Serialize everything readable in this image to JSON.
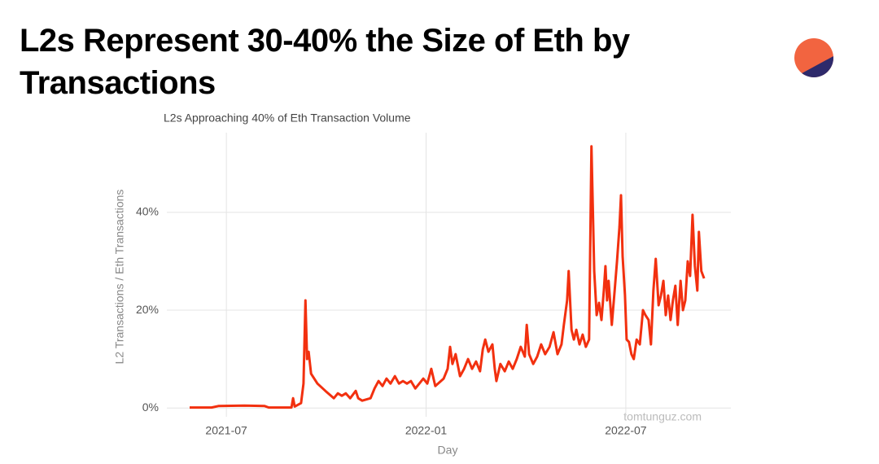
{
  "header": {
    "title": "L2s Represent 30-40% the Size of Eth by Transactions"
  },
  "chart_data": {
    "type": "line",
    "title": "L2s Approaching 40% of Eth Transaction Volume",
    "x_label": "Day",
    "y_label": "L2 Transactions / Eth Transactions",
    "watermark": "tomtunguz.com",
    "color": "#f2300f",
    "grid": true,
    "xlim": [
      2021.351,
      2022.763
    ],
    "xticks": [
      {
        "value": 2021.5,
        "label": "2021-07"
      },
      {
        "value": 2022.0,
        "label": "2022-01"
      },
      {
        "value": 2022.5,
        "label": "2022-07"
      }
    ],
    "ylim": [
      -1.8,
      56.3
    ],
    "yticks": [
      {
        "value": 0,
        "label": "0%"
      },
      {
        "value": 20,
        "label": "20%"
      },
      {
        "value": 40,
        "label": "40%"
      }
    ],
    "x": [
      2021.408,
      2021.463,
      2021.48,
      2021.545,
      2021.596,
      2021.606,
      2021.663,
      2021.667,
      2021.671,
      2021.687,
      2021.693,
      2021.698,
      2021.702,
      2021.706,
      2021.712,
      2021.728,
      2021.748,
      2021.769,
      2021.779,
      2021.789,
      2021.799,
      2021.81,
      2021.824,
      2021.83,
      2021.84,
      2021.861,
      2021.871,
      2021.881,
      2021.891,
      2021.901,
      2021.911,
      2021.922,
      2021.932,
      2021.942,
      2021.952,
      2021.962,
      2021.973,
      2021.983,
      2021.993,
      2022.003,
      2022.013,
      2022.023,
      2022.044,
      2022.054,
      2022.06,
      2022.066,
      2022.074,
      2022.085,
      2022.095,
      2022.105,
      2022.115,
      2022.125,
      2022.135,
      2022.142,
      2022.148,
      2022.156,
      2022.166,
      2022.172,
      2022.176,
      2022.186,
      2022.197,
      2022.207,
      2022.217,
      2022.227,
      2022.237,
      2022.247,
      2022.252,
      2022.258,
      2022.268,
      2022.278,
      2022.288,
      2022.298,
      2022.309,
      2022.319,
      2022.329,
      2022.339,
      2022.345,
      2022.353,
      2022.357,
      2022.364,
      2022.37,
      2022.376,
      2022.384,
      2022.392,
      2022.4,
      2022.408,
      2022.414,
      2022.421,
      2022.427,
      2022.433,
      2022.439,
      2022.445,
      2022.449,
      2022.453,
      2022.457,
      2022.465,
      2022.472,
      2022.478,
      2022.484,
      2022.488,
      2022.492,
      2022.498,
      2022.502,
      2022.508,
      2022.514,
      2022.52,
      2022.527,
      2022.535,
      2022.543,
      2022.549,
      2022.557,
      2022.563,
      2022.569,
      2022.575,
      2022.582,
      2022.588,
      2022.594,
      2022.6,
      2022.606,
      2022.612,
      2022.618,
      2022.624,
      2022.63,
      2022.637,
      2022.643,
      2022.649,
      2022.655,
      2022.661,
      2022.667,
      2022.673,
      2022.679,
      2022.683,
      2022.689,
      2022.696
    ],
    "values": [
      0.1,
      0.1,
      0.4,
      0.5,
      0.4,
      0.1,
      0.1,
      2,
      0.3,
      1,
      5,
      22,
      10,
      11.5,
      7,
      5,
      3.5,
      2,
      3,
      2.5,
      3,
      2,
      3.5,
      2,
      1.5,
      2,
      4,
      5.5,
      4.5,
      6,
      5,
      6.5,
      5,
      5.5,
      5,
      5.5,
      4,
      5,
      6,
      5,
      8,
      4.5,
      6,
      8,
      12.5,
      9,
      11,
      6.5,
      8,
      10,
      8,
      9.5,
      7.5,
      12,
      14,
      11.5,
      13,
      8,
      5.5,
      9,
      7.5,
      9.5,
      8,
      10,
      12.5,
      10.5,
      17,
      11,
      9,
      10.5,
      13,
      11,
      12.5,
      15.5,
      11,
      13,
      17,
      22,
      28,
      16,
      14,
      16,
      13,
      15,
      12.5,
      14,
      53.5,
      28,
      19,
      21.5,
      18,
      24,
      29,
      22,
      26,
      17,
      24,
      30,
      37,
      43.5,
      31,
      23,
      14,
      13.5,
      11,
      10,
      14,
      13,
      20,
      19,
      18,
      13,
      24,
      30.5,
      21,
      23,
      26,
      19,
      23,
      18,
      22,
      25,
      17,
      26,
      20,
      22,
      30,
      27,
      39.5,
      29,
      24,
      36,
      28,
      26.5
    ]
  }
}
